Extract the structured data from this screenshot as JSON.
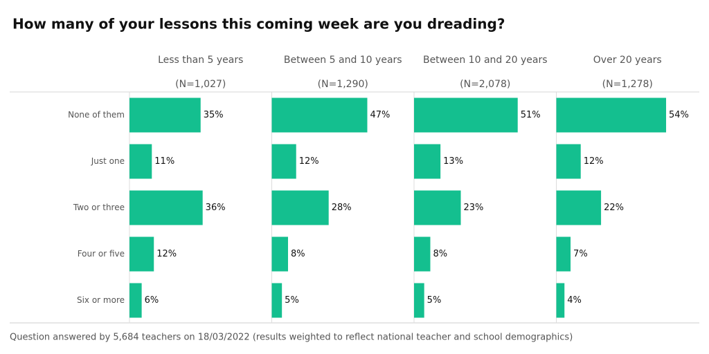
{
  "chart_data": {
    "type": "bar",
    "title": "How many of your lessons this coming week are you dreading?",
    "categories": [
      "None of them",
      "Just one",
      "Two or three",
      "Four or five",
      "Six or more"
    ],
    "xlim": [
      0,
      70
    ],
    "series": [
      {
        "name": "Less than 5 years",
        "subtitle": "(N=1,027)",
        "color": "#14bf8f",
        "values": [
          35,
          11,
          36,
          12,
          6
        ],
        "value_labels": [
          "35%",
          "11%",
          "36%",
          "12%",
          "6%"
        ]
      },
      {
        "name": "Between 5 and 10 years",
        "subtitle": "(N=1,290)",
        "color": "#14bf8f",
        "values": [
          47,
          12,
          28,
          8,
          5
        ],
        "value_labels": [
          "47%",
          "12%",
          "28%",
          "8%",
          "5%"
        ]
      },
      {
        "name": "Between 10 and 20 years",
        "subtitle": "(N=2,078)",
        "color": "#14bf8f",
        "values": [
          51,
          13,
          23,
          8,
          5
        ],
        "value_labels": [
          "51%",
          "13%",
          "23%",
          "8%",
          "5%"
        ]
      },
      {
        "name": "Over 20 years",
        "subtitle": "(N=1,278)",
        "color": "#14bf8f",
        "values": [
          54,
          12,
          22,
          7,
          4
        ],
        "value_labels": [
          "54%",
          "12%",
          "22%",
          "7%",
          "4%"
        ]
      }
    ],
    "note": "Question answered by 5,684 teachers on 18/03/2022 (results weighted to reflect national teacher and school demographics)"
  }
}
